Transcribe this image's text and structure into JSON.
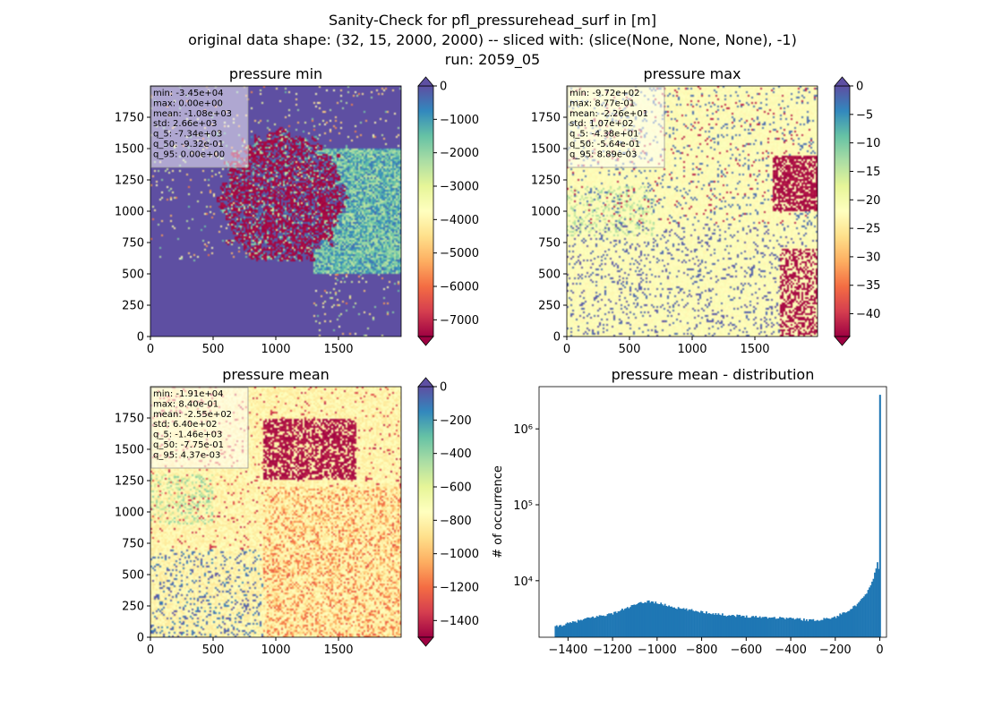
{
  "figure": {
    "title_lines": [
      "Sanity-Check for pfl_pressurehead_surf in [m]",
      "original data shape: (32, 15, 2000, 2000) -- sliced with: (slice(None, None, None), -1)",
      "run: 2059_05"
    ]
  },
  "chart_data": [
    {
      "type": "heatmap",
      "title": "pressure min",
      "xlim": [
        0,
        2000
      ],
      "ylim": [
        0,
        2000
      ],
      "xticks": [
        0,
        500,
        1000,
        1500
      ],
      "yticks": [
        0,
        250,
        500,
        750,
        1000,
        1250,
        1500,
        1750
      ],
      "colormap": "Spectral",
      "colorbar": {
        "range": [
          -7500,
          0
        ],
        "ticks": [
          0,
          -1000,
          -2000,
          -3000,
          -4000,
          -5000,
          -6000,
          -7000
        ],
        "extend": "both",
        "over_color": "#5e4fa2",
        "under_color": "#9e0142"
      },
      "stats": [
        "min: -3.45e+04",
        "max: 0.00e+00",
        "mean: -1.08e+03",
        "std: 2.66e+03",
        "q_5: -7.34e+03",
        "q_50: -9.32e-01",
        "q_95: 0.00e+00"
      ]
    },
    {
      "type": "heatmap",
      "title": "pressure max",
      "xlim": [
        0,
        2000
      ],
      "ylim": [
        0,
        2000
      ],
      "xticks": [
        0,
        500,
        1000,
        1500
      ],
      "yticks": [
        0,
        250,
        500,
        750,
        1000,
        1250,
        1500,
        1750
      ],
      "colormap": "Spectral",
      "colorbar": {
        "range": [
          -44,
          0
        ],
        "ticks": [
          0,
          -5,
          -10,
          -15,
          -20,
          -25,
          -30,
          -35,
          -40
        ],
        "extend": "both",
        "over_color": "#5e4fa2",
        "under_color": "#9e0142"
      },
      "stats": [
        "min: -9.72e+02",
        "max: 8.77e-01",
        "mean: -2.26e+01",
        "std: 1.07e+02",
        "q_5: -4.38e+01",
        "q_50: -5.64e-01",
        "q_95: 8.89e-03"
      ]
    },
    {
      "type": "heatmap",
      "title": "pressure mean",
      "xlim": [
        0,
        2000
      ],
      "ylim": [
        0,
        2000
      ],
      "xticks": [
        0,
        500,
        1000,
        1500
      ],
      "yticks": [
        0,
        250,
        500,
        750,
        1000,
        1250,
        1500,
        1750
      ],
      "colormap": "Spectral",
      "colorbar": {
        "range": [
          -1500,
          0
        ],
        "ticks": [
          0,
          -200,
          -400,
          -600,
          -800,
          -1000,
          -1200,
          -1400
        ],
        "extend": "both",
        "over_color": "#5e4fa2",
        "under_color": "#9e0142"
      },
      "stats": [
        "min: -1.91e+04",
        "max: 8.40e-01",
        "mean: -2.55e+02",
        "std: 6.40e+02",
        "q_5: -1.46e+03",
        "q_50: -7.75e-01",
        "q_95: 4.37e-03"
      ]
    },
    {
      "type": "bar",
      "title": "pressure mean - distribution",
      "xlabel": "",
      "ylabel": "# of occurrence",
      "xlim": [
        -1530,
        30
      ],
      "ylim": [
        1800,
        3600000
      ],
      "yscale": "log",
      "xticks": [
        -1400,
        -1200,
        -1000,
        -800,
        -600,
        -400,
        -200,
        0
      ],
      "yticks": [
        {
          "value": 10000,
          "label": "10⁴"
        },
        {
          "value": 100000,
          "label": "10⁵"
        },
        {
          "value": 1000000,
          "label": "10⁶"
        }
      ],
      "bar_color": "#1f77b4",
      "anchors": [
        [
          -1460,
          2450
        ],
        [
          -1300,
          3250
        ],
        [
          -1200,
          3700
        ],
        [
          -1100,
          4800
        ],
        [
          -1040,
          5400
        ],
        [
          -1000,
          5100
        ],
        [
          -900,
          4300
        ],
        [
          -800,
          3900
        ],
        [
          -700,
          3550
        ],
        [
          -600,
          3400
        ],
        [
          -500,
          3300
        ],
        [
          -400,
          3200
        ],
        [
          -300,
          3000
        ],
        [
          -200,
          3300
        ],
        [
          -100,
          4800
        ],
        [
          -50,
          7500
        ],
        [
          -20,
          13000
        ],
        [
          -8,
          19000
        ],
        [
          -3,
          12000
        ],
        [
          0,
          2800000
        ]
      ]
    }
  ]
}
